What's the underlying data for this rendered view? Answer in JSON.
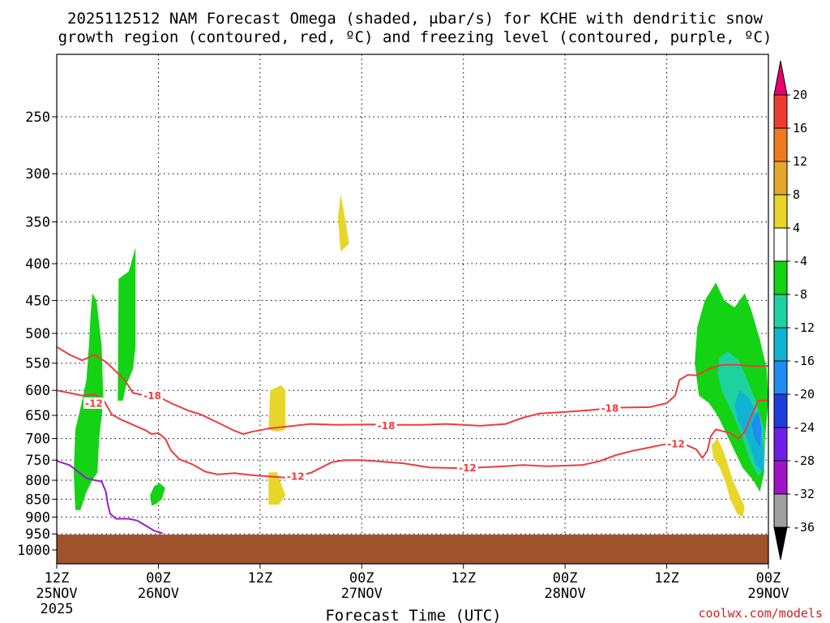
{
  "title_lines": [
    "2025112512 NAM Forecast Omega (shaded, μbar/s) for KCHE with dendritic snow",
    "growth region (contoured, red, ºC) and freezing level (contoured, purple, ºC)"
  ],
  "xaxis": {
    "title": "Forecast Time (UTC)",
    "ticks": [
      {
        "hour": 0,
        "label": "12Z",
        "date": "25NOV",
        "year": "2025"
      },
      {
        "hour": 12,
        "label": "00Z",
        "date": "26NOV"
      },
      {
        "hour": 24,
        "label": "12Z"
      },
      {
        "hour": 36,
        "label": "00Z",
        "date": "27NOV"
      },
      {
        "hour": 48,
        "label": "12Z"
      },
      {
        "hour": 60,
        "label": "00Z",
        "date": "28NOV"
      },
      {
        "hour": 72,
        "label": "12Z"
      },
      {
        "hour": 84,
        "label": "00Z",
        "date": "29NOV"
      }
    ]
  },
  "yaxis": {
    "ticks": [
      250,
      300,
      350,
      400,
      450,
      500,
      550,
      600,
      650,
      700,
      750,
      800,
      850,
      900,
      950,
      1000
    ]
  },
  "credit": "coolwx.com/models",
  "colorbar": {
    "labels": [
      "20",
      "16",
      "12",
      "8",
      "4",
      "-4",
      "-8",
      "-12",
      "-16",
      "-20",
      "-24",
      "-28",
      "-32",
      "-36"
    ],
    "colors": {
      "overflow_top": "#e8006e",
      "16_20": "#ee3c32",
      "12_16": "#f07a1e",
      "8_12": "#e6a82c",
      "4_8": "#e8d628",
      "neutral": "#ffffff",
      "m8_m4": "#14d214",
      "m12_m8": "#1ed2a0",
      "m16_m12": "#10b4d2",
      "m20_m16": "#1e8cf0",
      "m24_m20": "#1e3cdc",
      "m28_m24": "#6e1ee6",
      "m32_m28": "#a014c8",
      "m36_m32": "#a0a0a0",
      "overflow_bottom": "#000000"
    }
  },
  "chart_data": {
    "type": "time-height cross section",
    "x_unit": "forecast hour from 2025-11-25 12Z",
    "y_unit": "hPa",
    "xlim": [
      0,
      84
    ],
    "ylim": [
      1050,
      200
    ],
    "terrain_pressure_top": 952,
    "omega_regions": [
      {
        "color": "green",
        "points": [
          [
            2.2,
            880
          ],
          [
            2.0,
            780
          ],
          [
            2.2,
            680
          ],
          [
            3.0,
            620
          ],
          [
            3.5,
            580
          ],
          [
            3.8,
            520
          ],
          [
            4.0,
            470
          ],
          [
            4.2,
            440
          ],
          [
            4.7,
            450
          ],
          [
            5.3,
            520
          ],
          [
            5.5,
            620
          ],
          [
            5.0,
            700
          ],
          [
            4.8,
            780
          ],
          [
            4.2,
            800
          ],
          [
            3.5,
            830
          ],
          [
            2.8,
            880
          ]
        ]
      },
      {
        "color": "green",
        "points": [
          [
            7.2,
            620
          ],
          [
            7.3,
            420
          ],
          [
            8.5,
            410
          ],
          [
            9.3,
            380
          ],
          [
            9.3,
            520
          ],
          [
            9.0,
            560
          ],
          [
            8.2,
            590
          ],
          [
            7.8,
            620
          ]
        ]
      },
      {
        "color": "green",
        "points": [
          [
            11.2,
            868
          ],
          [
            11.0,
            840
          ],
          [
            11.5,
            815
          ],
          [
            12.2,
            808
          ],
          [
            12.8,
            820
          ],
          [
            12.4,
            850
          ],
          [
            11.8,
            862
          ]
        ]
      },
      {
        "color": "yellow",
        "points": [
          [
            25.0,
            680
          ],
          [
            25.2,
            600
          ],
          [
            26.5,
            590
          ],
          [
            27.0,
            600
          ],
          [
            27.0,
            680
          ],
          [
            26.0,
            685
          ]
        ]
      },
      {
        "color": "yellow",
        "points": [
          [
            25.0,
            865
          ],
          [
            25.0,
            780
          ],
          [
            26.0,
            780
          ],
          [
            26.5,
            810
          ],
          [
            27.0,
            840
          ],
          [
            26.2,
            865
          ]
        ]
      },
      {
        "color": "yellow",
        "points": [
          [
            33.5,
            385
          ],
          [
            33.2,
            345
          ],
          [
            33.5,
            320
          ],
          [
            34.2,
            355
          ],
          [
            34.5,
            375
          ]
        ]
      },
      {
        "color": "green",
        "points": [
          [
            75.8,
            610
          ],
          [
            75.3,
            550
          ],
          [
            75.6,
            490
          ],
          [
            76.5,
            450
          ],
          [
            77.8,
            425
          ],
          [
            78.8,
            450
          ],
          [
            80.0,
            460
          ],
          [
            81.2,
            440
          ],
          [
            82.0,
            465
          ],
          [
            83.0,
            510
          ],
          [
            83.8,
            560
          ],
          [
            84.0,
            620
          ],
          [
            83.6,
            700
          ],
          [
            83.5,
            780
          ],
          [
            83.0,
            830
          ],
          [
            82.2,
            800
          ],
          [
            81.0,
            770
          ],
          [
            79.8,
            720
          ],
          [
            78.8,
            680
          ],
          [
            78.0,
            650
          ],
          [
            77.0,
            625
          ]
        ]
      },
      {
        "color": "teal",
        "points": [
          [
            78.0,
            570
          ],
          [
            78.2,
            540
          ],
          [
            79.2,
            530
          ],
          [
            80.5,
            545
          ],
          [
            81.5,
            580
          ],
          [
            82.5,
            620
          ],
          [
            83.5,
            680
          ],
          [
            83.5,
            770
          ],
          [
            82.8,
            790
          ],
          [
            81.8,
            750
          ],
          [
            80.8,
            690
          ],
          [
            79.6,
            640
          ],
          [
            78.6,
            605
          ]
        ]
      },
      {
        "color": "cyan",
        "points": [
          [
            80.0,
            630
          ],
          [
            80.6,
            600
          ],
          [
            81.8,
            615
          ],
          [
            82.8,
            660
          ],
          [
            83.5,
            730
          ],
          [
            83.3,
            780
          ],
          [
            82.5,
            760
          ],
          [
            81.5,
            700
          ],
          [
            80.5,
            665
          ]
        ]
      },
      {
        "color": "blue",
        "points": [
          [
            82.0,
            670
          ],
          [
            82.8,
            640
          ],
          [
            83.2,
            680
          ],
          [
            83.0,
            720
          ],
          [
            82.4,
            700
          ]
        ]
      },
      {
        "color": "yellow",
        "points": [
          [
            77.5,
            745
          ],
          [
            77.3,
            715
          ],
          [
            78.0,
            700
          ],
          [
            78.7,
            730
          ],
          [
            79.2,
            760
          ],
          [
            79.8,
            800
          ],
          [
            80.5,
            835
          ],
          [
            81.2,
            870
          ],
          [
            81.0,
            900
          ],
          [
            80.3,
            890
          ],
          [
            79.5,
            850
          ],
          [
            79.0,
            810
          ],
          [
            78.3,
            770
          ]
        ]
      }
    ],
    "contours_dgz": [
      {
        "label": "-18",
        "points": [
          [
            0,
            522
          ],
          [
            1.5,
            535
          ],
          [
            3,
            545
          ],
          [
            4.5,
            535
          ],
          [
            6,
            550
          ],
          [
            8,
            580
          ],
          [
            9,
            605
          ],
          [
            10.5,
            610
          ],
          [
            12,
            612
          ],
          [
            13.5,
            625
          ],
          [
            15.5,
            640
          ],
          [
            17,
            648
          ],
          [
            19,
            665
          ],
          [
            21,
            683
          ],
          [
            22,
            690
          ],
          [
            23,
            685
          ],
          [
            25,
            678
          ],
          [
            28,
            672
          ],
          [
            30,
            668
          ],
          [
            33,
            670
          ],
          [
            37,
            669
          ],
          [
            40,
            670
          ],
          [
            43,
            670
          ],
          [
            46,
            668
          ],
          [
            50,
            672
          ],
          [
            53,
            668
          ],
          [
            55,
            655
          ],
          [
            57,
            646
          ],
          [
            60,
            643
          ],
          [
            63,
            639
          ],
          [
            66,
            634
          ],
          [
            70,
            633
          ],
          [
            72,
            625
          ],
          [
            73,
            610
          ],
          [
            73.5,
            580
          ],
          [
            74.5,
            571
          ],
          [
            75.5,
            572
          ],
          [
            77,
            560
          ],
          [
            78.5,
            553
          ],
          [
            80.5,
            553
          ],
          [
            82,
            555
          ],
          [
            84,
            555
          ]
        ]
      },
      {
        "label": "-12",
        "points": [
          [
            0,
            600
          ],
          [
            1.5,
            605
          ],
          [
            3,
            610
          ],
          [
            4.5,
            608
          ],
          [
            5.5,
            618
          ],
          [
            6.5,
            648
          ],
          [
            7.5,
            658
          ],
          [
            9,
            670
          ],
          [
            10.5,
            682
          ],
          [
            11.2,
            690
          ],
          [
            12,
            688
          ],
          [
            12.8,
            700
          ],
          [
            13.5,
            728
          ],
          [
            14.5,
            748
          ],
          [
            16,
            760
          ],
          [
            17.5,
            778
          ],
          [
            19,
            785
          ],
          [
            21,
            782
          ],
          [
            23,
            787
          ],
          [
            25,
            790
          ],
          [
            27,
            793
          ],
          [
            28.5,
            789
          ],
          [
            30,
            781
          ],
          [
            31.5,
            765
          ],
          [
            32.5,
            755
          ],
          [
            34,
            750
          ],
          [
            36,
            750
          ],
          [
            38,
            753
          ],
          [
            41,
            758
          ],
          [
            44,
            768
          ],
          [
            48,
            770
          ],
          [
            52,
            766
          ],
          [
            55,
            762
          ],
          [
            58,
            765
          ],
          [
            62,
            762
          ],
          [
            64,
            753
          ],
          [
            66,
            738
          ],
          [
            68,
            728
          ],
          [
            70,
            720
          ],
          [
            72,
            712
          ],
          [
            74,
            712
          ],
          [
            75.5,
            725
          ],
          [
            76.2,
            745
          ],
          [
            76.8,
            728
          ],
          [
            77.2,
            695
          ],
          [
            77.8,
            680
          ],
          [
            79.5,
            688
          ],
          [
            80.5,
            700
          ],
          [
            81.2,
            685
          ],
          [
            82,
            650
          ],
          [
            82.8,
            620
          ],
          [
            84,
            620
          ]
        ]
      }
    ],
    "contour_freezing": {
      "label": "0",
      "points": [
        [
          0,
          752
        ],
        [
          1.5,
          762
        ],
        [
          2.5,
          778
        ],
        [
          3.5,
          795
        ],
        [
          4.5,
          800
        ],
        [
          5.3,
          803
        ],
        [
          5.8,
          830
        ],
        [
          6.0,
          860
        ],
        [
          6.3,
          890
        ],
        [
          7.0,
          905
        ],
        [
          8.5,
          905
        ],
        [
          9.5,
          910
        ],
        [
          10.5,
          925
        ],
        [
          11.5,
          940
        ],
        [
          12.5,
          948
        ]
      ]
    },
    "contour_labels": [
      {
        "text": "-18",
        "hour": 11.3,
        "p": 610
      },
      {
        "text": "-12",
        "hour": 4.4,
        "p": 625
      },
      {
        "text": "-18",
        "hour": 38.9,
        "p": 671
      },
      {
        "text": "-18",
        "hour": 65.3,
        "p": 635
      },
      {
        "text": "-12",
        "hour": 28.2,
        "p": 790
      },
      {
        "text": "-12",
        "hour": 48.5,
        "p": 768
      },
      {
        "text": "-12",
        "hour": 73.1,
        "p": 712
      }
    ]
  }
}
